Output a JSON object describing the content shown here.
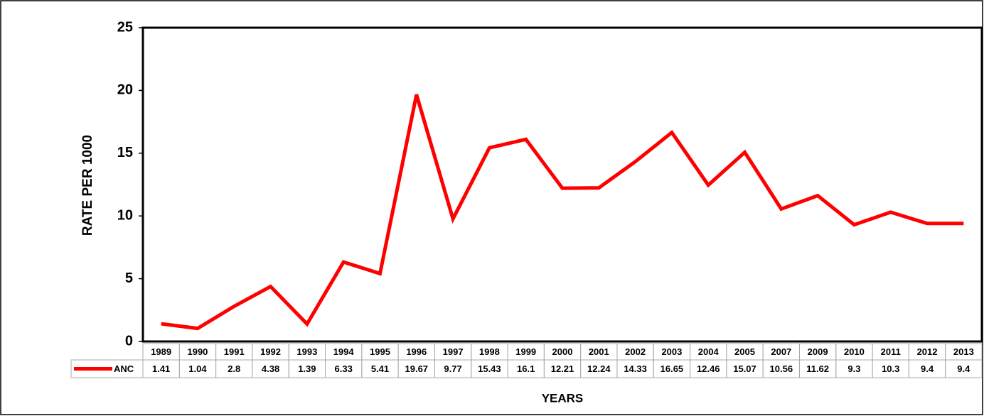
{
  "chart_data": {
    "type": "line",
    "y_label": "RATE PER 1000",
    "x_label": "YEARS",
    "categories": [
      "1989",
      "1990",
      "1991",
      "1992",
      "1993",
      "1994",
      "1995",
      "1996",
      "1997",
      "1998",
      "1999",
      "2000",
      "2001",
      "2002",
      "2003",
      "2004",
      "2005",
      "2007",
      "2009",
      "2010",
      "2011",
      "2012",
      "2013"
    ],
    "series": [
      {
        "name": "ANC",
        "color": "#ff0000",
        "values": [
          1.41,
          1.04,
          2.8,
          4.38,
          1.39,
          6.33,
          5.41,
          19.67,
          9.77,
          15.43,
          16.1,
          12.21,
          12.24,
          14.33,
          16.65,
          12.46,
          15.07,
          10.56,
          11.62,
          9.3,
          10.3,
          9.4,
          9.4
        ]
      }
    ],
    "ylim": [
      0,
      25
    ],
    "yticks": [
      0,
      5,
      10,
      15,
      20,
      25
    ],
    "grid": false,
    "data_table": true
  }
}
